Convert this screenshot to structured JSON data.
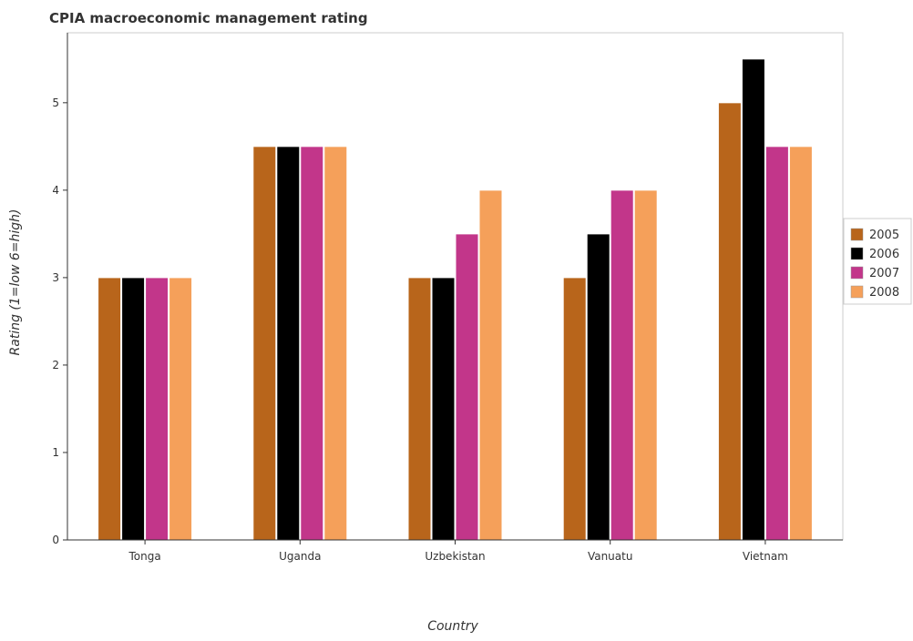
{
  "chart_data": {
    "type": "bar",
    "title": "CPIA macroeconomic management rating",
    "xlabel": "Country",
    "ylabel": "Rating (1=low 6=high)",
    "categories": [
      "Tonga",
      "Uganda",
      "Uzbekistan",
      "Vanuatu",
      "Vietnam"
    ],
    "series": [
      {
        "name": "2005",
        "color": "#b8651b",
        "values": [
          3.0,
          4.5,
          3.0,
          3.0,
          5.0
        ]
      },
      {
        "name": "2006",
        "color": "#000000",
        "values": [
          3.0,
          4.5,
          3.0,
          3.5,
          5.5
        ]
      },
      {
        "name": "2007",
        "color": "#c2368a",
        "values": [
          3.0,
          4.5,
          3.5,
          4.0,
          4.5
        ]
      },
      {
        "name": "2008",
        "color": "#f5a05a",
        "values": [
          3.0,
          4.5,
          4.0,
          4.0,
          4.5
        ]
      }
    ],
    "ylim": [
      0,
      5.8
    ],
    "yticks": [
      "0",
      "1",
      "2",
      "3",
      "4",
      "5"
    ],
    "grid": false,
    "legend_position": "right"
  }
}
